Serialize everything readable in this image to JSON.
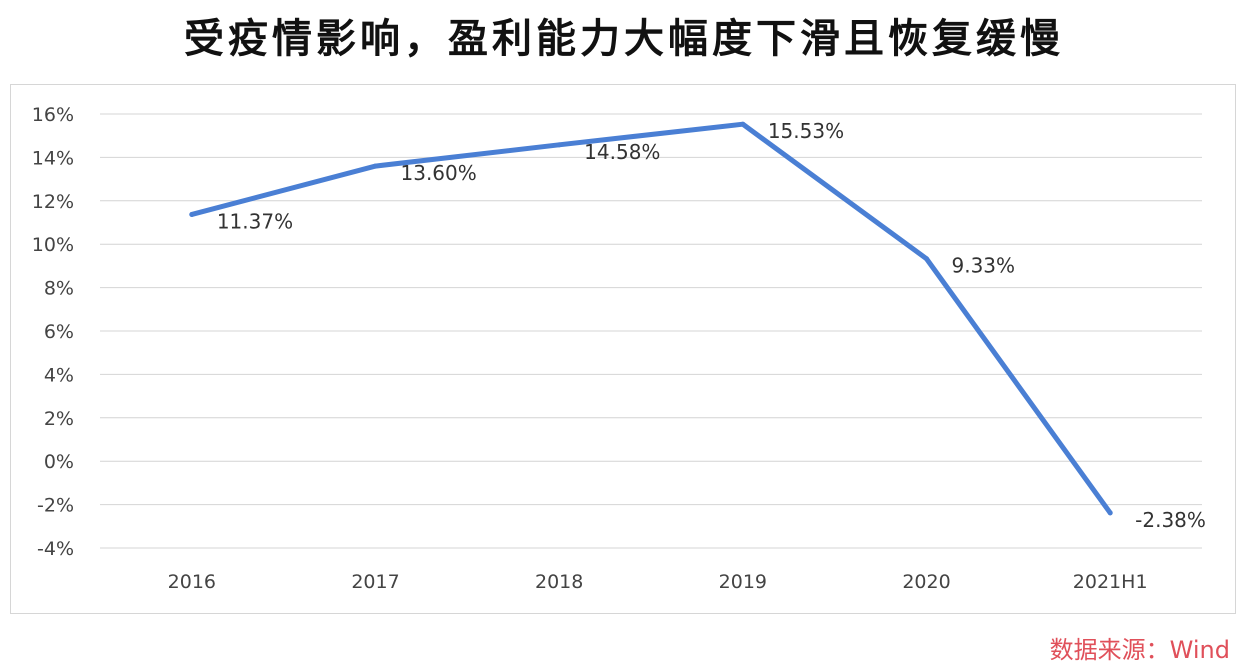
{
  "title": "受疫情影响，盈利能力大幅度下滑且恢复缓慢",
  "source": "数据来源：Wind",
  "chart_data": {
    "type": "line",
    "title": "受疫情影响，盈利能力大幅度下滑且恢复缓慢",
    "categories": [
      "2016",
      "2017",
      "2018",
      "2019",
      "2020",
      "2021H1"
    ],
    "series": [
      {
        "values": [
          11.37,
          13.6,
          14.58,
          15.53,
          9.33,
          -2.38
        ],
        "labels": [
          "11.37%",
          "13.60%",
          "14.58%",
          "15.53%",
          "9.33%",
          "-2.38%"
        ]
      }
    ],
    "y_ticks": [
      "16%",
      "14%",
      "12%",
      "10%",
      "8%",
      "6%",
      "4%",
      "2%",
      "0%",
      "-2%",
      "-4%"
    ],
    "ylim": [
      -4,
      16
    ],
    "grid": true,
    "legend": "none",
    "line_color": "#4a7fd4"
  }
}
